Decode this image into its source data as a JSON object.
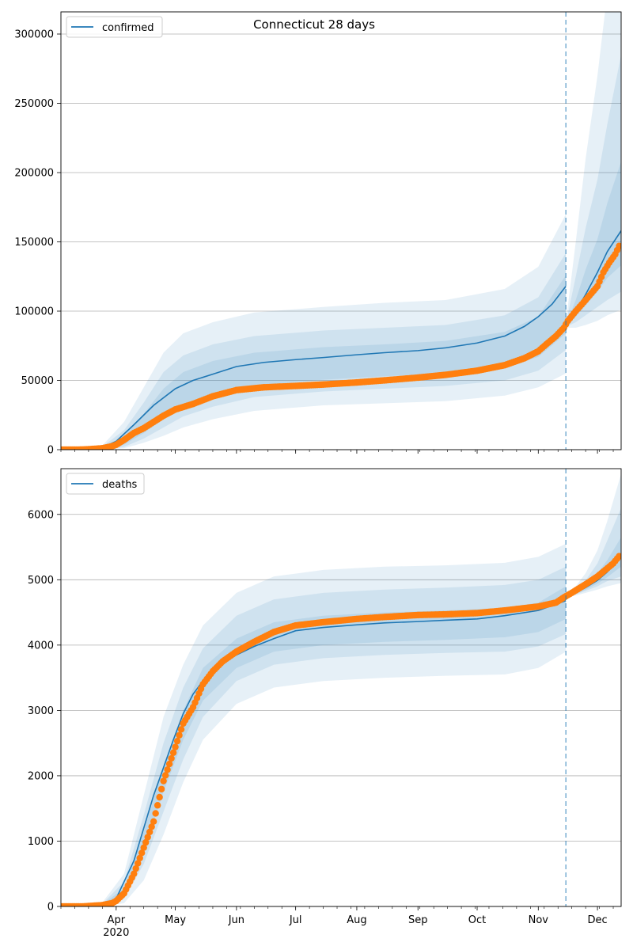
{
  "figure_title": "Connecticut 28 days",
  "colors": {
    "model_line": "#1f77b4",
    "band_fill": "#1f77b4",
    "observed": "#ff7f0e",
    "forecast_marker": "#1f77b4",
    "grid": "#b0b0b0"
  },
  "x_axis": {
    "type": "date",
    "range": [
      "2020-03-04",
      "2020-12-13"
    ],
    "tick_labels": [
      {
        "date": "2020-04-01",
        "label": "Apr",
        "sub": "2020"
      },
      {
        "date": "2020-05-01",
        "label": "May",
        "sub": ""
      },
      {
        "date": "2020-06-01",
        "label": "Jun",
        "sub": ""
      },
      {
        "date": "2020-07-01",
        "label": "Jul",
        "sub": ""
      },
      {
        "date": "2020-08-01",
        "label": "Aug",
        "sub": ""
      },
      {
        "date": "2020-09-01",
        "label": "Sep",
        "sub": ""
      },
      {
        "date": "2020-10-01",
        "label": "Oct",
        "sub": ""
      },
      {
        "date": "2020-11-01",
        "label": "Nov",
        "sub": ""
      },
      {
        "date": "2020-12-01",
        "label": "Dec",
        "sub": ""
      }
    ]
  },
  "forecast_start": "2020-11-15",
  "chart_data": [
    {
      "type": "line",
      "legend": {
        "label": "confirmed",
        "placement": "top-left"
      },
      "ylim": [
        0,
        316000
      ],
      "yticks": [
        0,
        50000,
        100000,
        150000,
        200000,
        250000,
        300000
      ],
      "grid": "y",
      "fit": {
        "x": [
          "2020-03-04",
          "2020-03-15",
          "2020-03-25",
          "2020-04-01",
          "2020-04-10",
          "2020-04-20",
          "2020-05-01",
          "2020-05-10",
          "2020-05-20",
          "2020-06-01",
          "2020-06-15",
          "2020-07-01",
          "2020-07-15",
          "2020-08-01",
          "2020-08-15",
          "2020-09-01",
          "2020-09-15",
          "2020-10-01",
          "2020-10-15",
          "2020-10-25",
          "2020-11-01",
          "2020-11-08",
          "2020-11-15"
        ],
        "y": [
          0,
          200,
          1500,
          6000,
          18000,
          32000,
          44000,
          50000,
          54500,
          60000,
          63000,
          65000,
          66500,
          68500,
          70000,
          71500,
          73500,
          77000,
          82000,
          89000,
          96000,
          105000,
          118000
        ]
      },
      "bands": [
        {
          "x": [
            "2020-03-04",
            "2020-03-25",
            "2020-04-05",
            "2020-04-15",
            "2020-04-25",
            "2020-05-05",
            "2020-05-20",
            "2020-06-10",
            "2020-07-15",
            "2020-08-15",
            "2020-09-15",
            "2020-10-15",
            "2020-11-01",
            "2020-11-15"
          ],
          "lower": [
            0,
            0,
            1000,
            5000,
            10000,
            16000,
            22000,
            28000,
            32000,
            33500,
            35000,
            39000,
            45000,
            55000
          ],
          "upper": [
            0,
            3000,
            20000,
            45000,
            70000,
            84000,
            92000,
            99000,
            103000,
            106000,
            108000,
            116000,
            132000,
            170000
          ]
        },
        {
          "x": [
            "2020-03-04",
            "2020-03-25",
            "2020-04-05",
            "2020-04-15",
            "2020-04-25",
            "2020-05-05",
            "2020-05-20",
            "2020-06-10",
            "2020-07-15",
            "2020-08-15",
            "2020-09-15",
            "2020-10-15",
            "2020-11-01",
            "2020-11-15"
          ],
          "lower": [
            0,
            0,
            2000,
            8000,
            16000,
            24000,
            31000,
            38000,
            42000,
            44000,
            46000,
            50000,
            57000,
            72000
          ],
          "upper": [
            0,
            2200,
            14000,
            34000,
            56000,
            68000,
            76000,
            82000,
            86000,
            88000,
            90000,
            97000,
            110000,
            142000
          ]
        },
        {
          "x": [
            "2020-03-04",
            "2020-03-25",
            "2020-04-05",
            "2020-04-15",
            "2020-04-25",
            "2020-05-05",
            "2020-05-20",
            "2020-06-10",
            "2020-07-15",
            "2020-08-15",
            "2020-09-15",
            "2020-10-15",
            "2020-11-01",
            "2020-11-15"
          ],
          "lower": [
            0,
            200,
            3500,
            12000,
            22000,
            32000,
            39500,
            46000,
            50500,
            53000,
            55000,
            59500,
            67000,
            84000
          ],
          "upper": [
            0,
            1500,
            10000,
            26000,
            44000,
            56000,
            64000,
            70000,
            74000,
            76000,
            78500,
            85000,
            96000,
            126000
          ]
        }
      ],
      "forecast": {
        "x": [
          "2020-11-15",
          "2020-11-20",
          "2020-11-25",
          "2020-12-01",
          "2020-12-06",
          "2020-12-13"
        ],
        "y": [
          89000,
          100000,
          112000,
          128000,
          143000,
          158000
        ]
      },
      "forecast_bands": [
        {
          "x": [
            "2020-11-15",
            "2020-11-20",
            "2020-11-25",
            "2020-12-01",
            "2020-12-06",
            "2020-12-13"
          ],
          "lower": [
            88000,
            88000,
            90000,
            93000,
            97000,
            101000
          ],
          "upper": [
            92000,
            150000,
            210000,
            270000,
            330000,
            390000
          ]
        },
        {
          "x": [
            "2020-11-15",
            "2020-11-20",
            "2020-11-25",
            "2020-12-01",
            "2020-12-06",
            "2020-12-13"
          ],
          "lower": [
            88500,
            92000,
            97000,
            103000,
            108000,
            114000
          ],
          "upper": [
            91000,
            125000,
            160000,
            195000,
            235000,
            285000
          ]
        },
        {
          "x": [
            "2020-11-15",
            "2020-11-20",
            "2020-11-25",
            "2020-12-01",
            "2020-12-06",
            "2020-12-13"
          ],
          "lower": [
            89000,
            96000,
            104000,
            114000,
            124000,
            133000
          ],
          "upper": [
            90000,
            108000,
            130000,
            152000,
            178000,
            208000
          ]
        }
      ],
      "observed": {
        "x": [
          "2020-03-04",
          "2020-03-10",
          "2020-03-15",
          "2020-03-20",
          "2020-03-25",
          "2020-03-30",
          "2020-04-01",
          "2020-04-05",
          "2020-04-10",
          "2020-04-15",
          "2020-04-20",
          "2020-04-25",
          "2020-05-01",
          "2020-05-10",
          "2020-05-20",
          "2020-06-01",
          "2020-06-15",
          "2020-07-01",
          "2020-07-15",
          "2020-08-01",
          "2020-08-15",
          "2020-09-01",
          "2020-09-15",
          "2020-10-01",
          "2020-10-15",
          "2020-10-25",
          "2020-11-01",
          "2020-11-05",
          "2020-11-10",
          "2020-11-14",
          "2020-11-16",
          "2020-11-20",
          "2020-11-25",
          "2020-12-01",
          "2020-12-04",
          "2020-12-07",
          "2020-12-10",
          "2020-12-12"
        ],
        "y": [
          0,
          0,
          100,
          500,
          1000,
          2500,
          3500,
          7000,
          12000,
          15500,
          20000,
          24500,
          29000,
          33000,
          38500,
          43000,
          45000,
          46000,
          47000,
          48500,
          50000,
          52000,
          54000,
          57000,
          61000,
          66000,
          71000,
          76000,
          82000,
          88000,
          93000,
          100000,
          108000,
          118000,
          128000,
          135000,
          141000,
          147000
        ]
      }
    },
    {
      "type": "line",
      "legend": {
        "label": "deaths",
        "placement": "top-left"
      },
      "ylim": [
        0,
        6700
      ],
      "yticks": [
        0,
        1000,
        2000,
        3000,
        4000,
        5000,
        6000
      ],
      "grid": "y",
      "fit": {
        "x": [
          "2020-03-04",
          "2020-03-15",
          "2020-03-25",
          "2020-04-01",
          "2020-04-10",
          "2020-04-20",
          "2020-04-30",
          "2020-05-05",
          "2020-05-10",
          "2020-05-15",
          "2020-05-20",
          "2020-05-25",
          "2020-06-01",
          "2020-06-10",
          "2020-06-20",
          "2020-07-01",
          "2020-07-15",
          "2020-08-01",
          "2020-08-15",
          "2020-09-01",
          "2020-09-15",
          "2020-10-01",
          "2020-10-15",
          "2020-11-01",
          "2020-11-15"
        ],
        "y": [
          0,
          0,
          20,
          120,
          700,
          1700,
          2550,
          2950,
          3250,
          3450,
          3600,
          3720,
          3850,
          3980,
          4100,
          4220,
          4270,
          4310,
          4340,
          4360,
          4380,
          4400,
          4450,
          4530,
          4680
        ]
      },
      "bands": [
        {
          "x": [
            "2020-03-04",
            "2020-03-25",
            "2020-04-05",
            "2020-04-15",
            "2020-04-25",
            "2020-05-05",
            "2020-05-15",
            "2020-06-01",
            "2020-06-20",
            "2020-07-15",
            "2020-08-15",
            "2020-09-15",
            "2020-10-15",
            "2020-11-01",
            "2020-11-15"
          ],
          "lower": [
            0,
            0,
            50,
            400,
            1100,
            1900,
            2550,
            3100,
            3350,
            3450,
            3500,
            3530,
            3550,
            3650,
            3900
          ],
          "upper": [
            0,
            60,
            500,
            1700,
            2900,
            3700,
            4300,
            4800,
            5050,
            5150,
            5200,
            5220,
            5260,
            5350,
            5550
          ]
        },
        {
          "x": [
            "2020-03-04",
            "2020-03-25",
            "2020-04-05",
            "2020-04-15",
            "2020-04-25",
            "2020-05-05",
            "2020-05-15",
            "2020-06-01",
            "2020-06-20",
            "2020-07-15",
            "2020-08-15",
            "2020-09-15",
            "2020-10-15",
            "2020-11-01",
            "2020-11-15"
          ],
          "lower": [
            0,
            5,
            120,
            650,
            1450,
            2250,
            2900,
            3450,
            3700,
            3800,
            3850,
            3880,
            3900,
            3980,
            4170
          ],
          "upper": [
            0,
            40,
            380,
            1400,
            2500,
            3350,
            3950,
            4450,
            4700,
            4800,
            4850,
            4880,
            4920,
            5000,
            5200
          ]
        },
        {
          "x": [
            "2020-03-04",
            "2020-03-25",
            "2020-04-05",
            "2020-04-15",
            "2020-04-25",
            "2020-05-05",
            "2020-05-15",
            "2020-06-01",
            "2020-06-20",
            "2020-07-15",
            "2020-08-15",
            "2020-09-15",
            "2020-10-15",
            "2020-11-01",
            "2020-11-15"
          ],
          "lower": [
            0,
            10,
            200,
            850,
            1750,
            2550,
            3150,
            3650,
            3900,
            4000,
            4050,
            4080,
            4120,
            4200,
            4400
          ],
          "upper": [
            0,
            30,
            280,
            1150,
            2150,
            3000,
            3650,
            4100,
            4350,
            4450,
            4500,
            4530,
            4570,
            4650,
            4900
          ]
        }
      ],
      "forecast": {
        "x": [
          "2020-11-15",
          "2020-11-20",
          "2020-11-25",
          "2020-12-01",
          "2020-12-06",
          "2020-12-13"
        ],
        "y": [
          4740,
          4800,
          4880,
          4990,
          5120,
          5380
        ]
      },
      "forecast_bands": [
        {
          "x": [
            "2020-11-15",
            "2020-11-20",
            "2020-11-25",
            "2020-12-01",
            "2020-12-06",
            "2020-12-13"
          ],
          "lower": [
            4730,
            4760,
            4800,
            4850,
            4900,
            4950
          ],
          "upper": [
            4750,
            4900,
            5100,
            5450,
            5900,
            6620
          ]
        },
        {
          "x": [
            "2020-11-15",
            "2020-11-20",
            "2020-11-25",
            "2020-12-01",
            "2020-12-06",
            "2020-12-13"
          ],
          "lower": [
            4735,
            4775,
            4830,
            4900,
            4980,
            5050
          ],
          "upper": [
            4745,
            4860,
            4990,
            5250,
            5600,
            6100
          ]
        },
        {
          "x": [
            "2020-11-15",
            "2020-11-20",
            "2020-11-25",
            "2020-12-01",
            "2020-12-06",
            "2020-12-13"
          ],
          "lower": [
            4738,
            4785,
            4850,
            4940,
            5040,
            5200
          ],
          "upper": [
            4742,
            4830,
            4930,
            5100,
            5300,
            5650
          ]
        }
      ],
      "observed": {
        "x": [
          "2020-03-04",
          "2020-03-15",
          "2020-03-25",
          "2020-03-30",
          "2020-04-01",
          "2020-04-05",
          "2020-04-10",
          "2020-04-15",
          "2020-04-20",
          "2020-04-25",
          "2020-05-01",
          "2020-05-05",
          "2020-05-10",
          "2020-05-15",
          "2020-05-20",
          "2020-05-25",
          "2020-06-01",
          "2020-06-10",
          "2020-06-20",
          "2020-07-01",
          "2020-07-15",
          "2020-08-01",
          "2020-08-15",
          "2020-09-01",
          "2020-09-15",
          "2020-10-01",
          "2020-10-15",
          "2020-11-01",
          "2020-11-10",
          "2020-11-14",
          "2020-11-18",
          "2020-11-25",
          "2020-12-01",
          "2020-12-05",
          "2020-12-09",
          "2020-12-12"
        ],
        "y": [
          0,
          0,
          20,
          50,
          85,
          200,
          500,
          900,
          1300,
          1920,
          2440,
          2800,
          3050,
          3400,
          3600,
          3750,
          3900,
          4050,
          4200,
          4300,
          4350,
          4400,
          4430,
          4460,
          4470,
          4490,
          4530,
          4590,
          4650,
          4730,
          4800,
          4930,
          5050,
          5150,
          5250,
          5360
        ]
      }
    }
  ]
}
